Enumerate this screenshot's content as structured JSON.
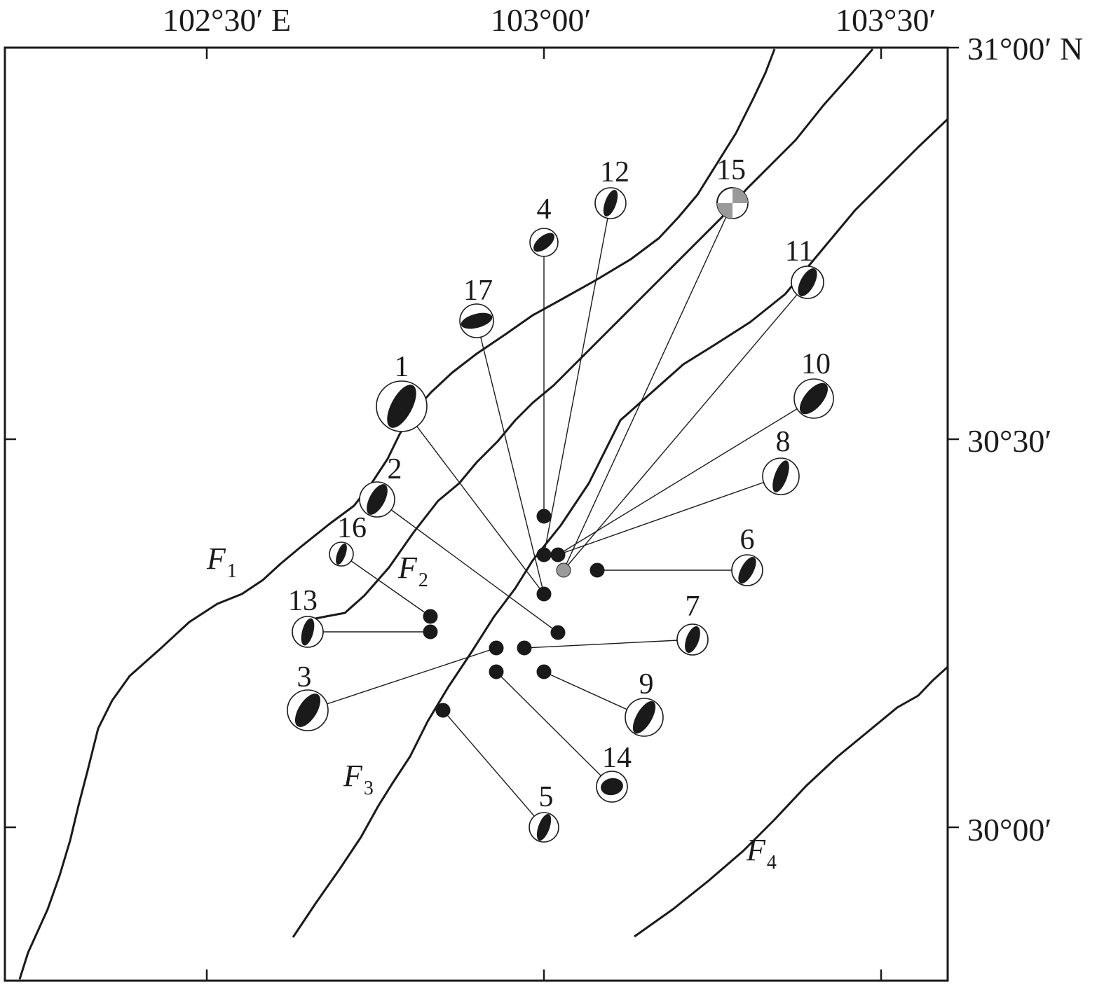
{
  "map": {
    "top_labels": [
      {
        "id": "lon-102-30",
        "text": "102°30′ E"
      },
      {
        "id": "lon-103-00",
        "text": "103°00′"
      },
      {
        "id": "lon-103-30",
        "text": "103°30′"
      }
    ],
    "right_labels": [
      {
        "id": "lat-31-00",
        "text": "31°00′ N"
      },
      {
        "id": "lat-30-30",
        "text": "30°30′"
      },
      {
        "id": "lat-30-00",
        "text": "30°00′"
      }
    ],
    "faults": [
      {
        "id": "F1",
        "main": "F",
        "sub": "1"
      },
      {
        "id": "F2",
        "main": "F",
        "sub": "2"
      },
      {
        "id": "F3",
        "main": "F",
        "sub": "3"
      },
      {
        "id": "F4",
        "main": "F",
        "sub": "4"
      }
    ],
    "events": [
      {
        "label": "1"
      },
      {
        "label": "2"
      },
      {
        "label": "3"
      },
      {
        "label": "4"
      },
      {
        "label": "5"
      },
      {
        "label": "6"
      },
      {
        "label": "7"
      },
      {
        "label": "8"
      },
      {
        "label": "9"
      },
      {
        "label": "10"
      },
      {
        "label": "11"
      },
      {
        "label": "12"
      },
      {
        "label": "13"
      },
      {
        "label": "14"
      },
      {
        "label": "15"
      },
      {
        "label": "16"
      },
      {
        "label": "17"
      }
    ],
    "colors": {
      "ink": "#1a1a1a",
      "highlight": "#9a9a9a",
      "frame": "#1a1a1a"
    }
  }
}
